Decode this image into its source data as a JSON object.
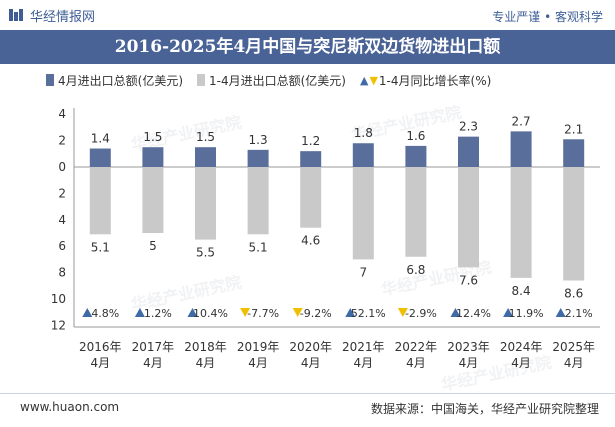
{
  "header": {
    "brand": "华经情报网",
    "tagline": "专业严谨 • 客观科学"
  },
  "title": "2016-2025年4月中国与突尼斯双边货物进出口额",
  "legend": {
    "series1": "4月进出口总额(亿美元)",
    "series2": "1-4月进出口总额(亿美元)",
    "series3": "1-4月同比增长率(%)"
  },
  "colors": {
    "dark_bar": "#5a6e9c",
    "light_bar": "#c9c9c9",
    "up": "#3f6aa6",
    "down": "#f0c000",
    "title_bg": "#4a6396"
  },
  "watermark": "华经产业研究院",
  "footer": {
    "site": "www.huaon.com",
    "source": "数据来源：中国海关，华经产业研究院整理"
  },
  "chart_data": {
    "type": "bar",
    "categories": [
      "2016年\n4月",
      "2017年\n4月",
      "2018年\n4月",
      "2019年\n4月",
      "2020年\n4月",
      "2021年\n4月",
      "2022年\n4月",
      "2023年\n4月",
      "2024年\n4月",
      "2025年\n4月"
    ],
    "series": [
      {
        "name": "4月进出口总额(亿美元)",
        "direction": "up",
        "values": [
          1.4,
          1.5,
          1.5,
          1.3,
          1.2,
          1.8,
          1.6,
          2.3,
          2.7,
          2.1
        ]
      },
      {
        "name": "1-4月进出口总额(亿美元)",
        "direction": "down",
        "values": [
          5.1,
          5,
          5.5,
          5.1,
          4.6,
          7,
          6.8,
          7.6,
          8.4,
          8.6
        ]
      },
      {
        "name": "1-4月同比增长率(%)",
        "values": [
          4.8,
          1.2,
          10.4,
          -7.7,
          -9.2,
          52.1,
          -2.9,
          12.4,
          11.9,
          2.1
        ]
      }
    ],
    "y_ticks_up": [
      4,
      2,
      0
    ],
    "y_ticks_down": [
      2,
      4,
      6,
      8,
      10,
      12
    ],
    "ylim_up": [
      0,
      4
    ],
    "ylim_down": [
      0,
      12
    ],
    "grid": false
  }
}
